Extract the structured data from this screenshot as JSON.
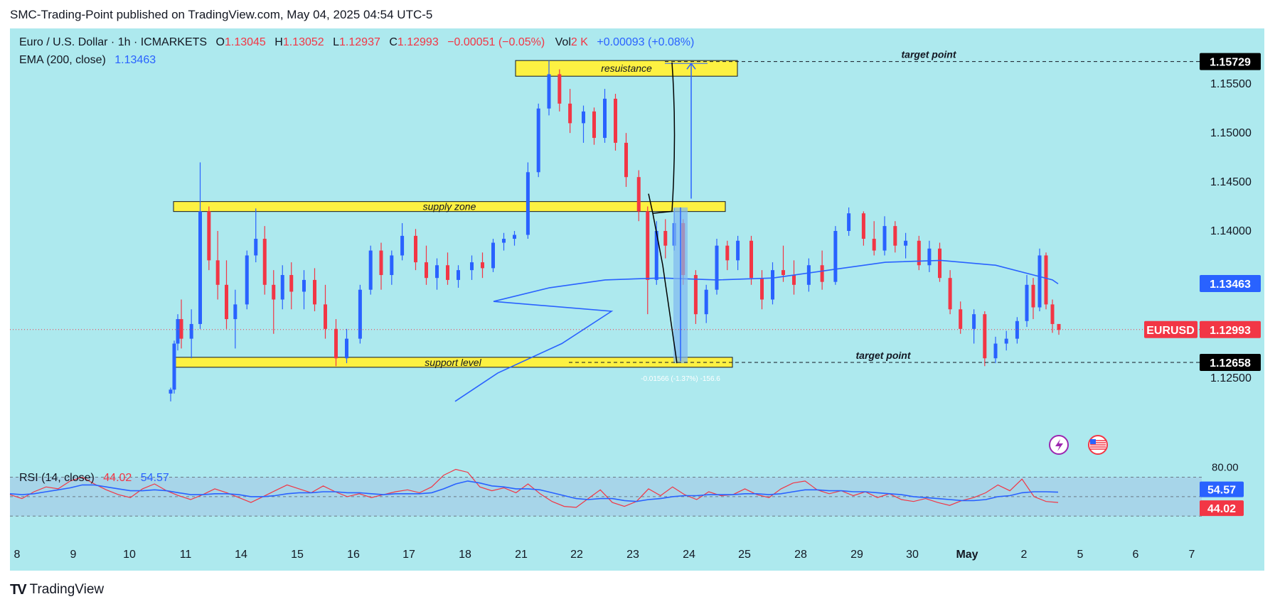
{
  "header": {
    "publisher_line": "SMC-Trading-Point published on TradingView.com, May 04, 2025 04:54 UTC-5"
  },
  "legend": {
    "symbol": "Euro / U.S. Dollar · 1h · ICMARKETS",
    "open_label": "O",
    "open": "1.13045",
    "high_label": "H",
    "high": "1.13052",
    "low_label": "L",
    "low": "1.12937",
    "close_label": "C",
    "close": "1.12993",
    "change": "−0.00051 (−0.05%)",
    "vol_label": "Vol",
    "vol": "2 K",
    "measure_top": "+0.00093 (+0.08%)",
    "ema_label": "EMA (200, close)",
    "ema_value": "1.13463",
    "rsi_label": "RSI (14, close)",
    "rsi_value": "44.02",
    "rsi_ma_value": "54.57"
  },
  "footer": {
    "logo_mark": "TV",
    "brand": "TradingView"
  },
  "colors": {
    "background": "#ade9ee",
    "up_candle": "#2962ff",
    "down_candle": "#f23645",
    "ema": "#2962ff",
    "zone": "#fdf142",
    "rsi": "#f23645",
    "rsi_ma": "#2962ff",
    "rsi_band": "#a3c8e6",
    "price_tag": "#f23645",
    "ema_tag": "#2962ff"
  },
  "chart_data": [
    {
      "type": "candlestick",
      "symbol_tag": "EURUSD",
      "last_price": 1.12993,
      "ema_last": 1.13463,
      "y_ticks": [
        1.155,
        1.15,
        1.145,
        1.14,
        1.135,
        1.13,
        1.125
      ],
      "ylim": [
        1.1215,
        1.1585
      ],
      "x_ticks": [
        "8",
        "9",
        "10",
        "11",
        "14",
        "15",
        "16",
        "17",
        "18",
        "21",
        "22",
        "23",
        "24",
        "25",
        "28",
        "29",
        "30",
        "May",
        "2",
        "5",
        "6",
        "7"
      ],
      "zones": [
        {
          "label": "resuistance",
          "x_from": "21",
          "x_to": "24",
          "y_from": 1.1558,
          "y_to": 1.1574
        },
        {
          "label": "supply zone",
          "x_from": "11",
          "x_to": "25",
          "y_from": 1.1423,
          "y_to": 1.143
        },
        {
          "label": "support level",
          "x_from": "11",
          "x_to": "25",
          "y_from": 1.1262,
          "y_to": 1.1271
        }
      ],
      "target_lines": [
        {
          "label": "target point",
          "price": 1.15729
        },
        {
          "label": "target point",
          "price": 1.12658
        }
      ],
      "price_labels": [
        "1.15729",
        "1.13463",
        "1.12993",
        "1.12658"
      ],
      "measure_bottom": "-0.01566 (-1.37%) -156.6",
      "candles": [
        {
          "d": "10",
          "o": 1.1234,
          "h": 1.124,
          "l": 1.1226,
          "c": 1.1238
        },
        {
          "d": "10",
          "o": 1.1238,
          "h": 1.1288,
          "l": 1.1234,
          "c": 1.1285
        },
        {
          "d": "10",
          "o": 1.1285,
          "h": 1.1315,
          "l": 1.1278,
          "c": 1.131
        },
        {
          "d": "10",
          "o": 1.131,
          "h": 1.133,
          "l": 1.128,
          "c": 1.129
        },
        {
          "d": "11",
          "o": 1.129,
          "h": 1.132,
          "l": 1.127,
          "c": 1.1305
        },
        {
          "d": "11",
          "o": 1.1305,
          "h": 1.147,
          "l": 1.13,
          "c": 1.142
        },
        {
          "d": "11",
          "o": 1.142,
          "h": 1.1425,
          "l": 1.136,
          "c": 1.137
        },
        {
          "d": "11",
          "o": 1.137,
          "h": 1.14,
          "l": 1.133,
          "c": 1.1345
        },
        {
          "d": "11",
          "o": 1.1345,
          "h": 1.137,
          "l": 1.13,
          "c": 1.131
        },
        {
          "d": "11",
          "o": 1.131,
          "h": 1.134,
          "l": 1.128,
          "c": 1.1325
        },
        {
          "d": "14",
          "o": 1.1325,
          "h": 1.138,
          "l": 1.132,
          "c": 1.1375
        },
        {
          "d": "14",
          "o": 1.1375,
          "h": 1.1423,
          "l": 1.1368,
          "c": 1.1392
        },
        {
          "d": "14",
          "o": 1.1392,
          "h": 1.1405,
          "l": 1.1335,
          "c": 1.1345
        },
        {
          "d": "14",
          "o": 1.1345,
          "h": 1.136,
          "l": 1.1295,
          "c": 1.133
        },
        {
          "d": "14",
          "o": 1.133,
          "h": 1.1365,
          "l": 1.132,
          "c": 1.1355
        },
        {
          "d": "14",
          "o": 1.1355,
          "h": 1.1368,
          "l": 1.132,
          "c": 1.1338
        },
        {
          "d": "15",
          "o": 1.1338,
          "h": 1.136,
          "l": 1.132,
          "c": 1.135
        },
        {
          "d": "15",
          "o": 1.135,
          "h": 1.1362,
          "l": 1.1318,
          "c": 1.1325
        },
        {
          "d": "15",
          "o": 1.1325,
          "h": 1.1345,
          "l": 1.129,
          "c": 1.13
        },
        {
          "d": "15",
          "o": 1.13,
          "h": 1.131,
          "l": 1.1262,
          "c": 1.127
        },
        {
          "d": "15",
          "o": 1.127,
          "h": 1.13,
          "l": 1.1265,
          "c": 1.129
        },
        {
          "d": "16",
          "o": 1.129,
          "h": 1.1345,
          "l": 1.1285,
          "c": 1.134
        },
        {
          "d": "16",
          "o": 1.134,
          "h": 1.1385,
          "l": 1.1335,
          "c": 1.138
        },
        {
          "d": "16",
          "o": 1.138,
          "h": 1.1388,
          "l": 1.134,
          "c": 1.1355
        },
        {
          "d": "16",
          "o": 1.1355,
          "h": 1.138,
          "l": 1.1345,
          "c": 1.1375
        },
        {
          "d": "16",
          "o": 1.1375,
          "h": 1.1408,
          "l": 1.137,
          "c": 1.1395
        },
        {
          "d": "17",
          "o": 1.1395,
          "h": 1.1402,
          "l": 1.136,
          "c": 1.1368
        },
        {
          "d": "17",
          "o": 1.1368,
          "h": 1.1385,
          "l": 1.1345,
          "c": 1.1352
        },
        {
          "d": "17",
          "o": 1.1352,
          "h": 1.1372,
          "l": 1.134,
          "c": 1.1365
        },
        {
          "d": "17",
          "o": 1.1365,
          "h": 1.1378,
          "l": 1.1345,
          "c": 1.135
        },
        {
          "d": "17",
          "o": 1.135,
          "h": 1.1365,
          "l": 1.1342,
          "c": 1.136
        },
        {
          "d": "18",
          "o": 1.136,
          "h": 1.1375,
          "l": 1.135,
          "c": 1.1368
        },
        {
          "d": "18",
          "o": 1.1368,
          "h": 1.1378,
          "l": 1.1352,
          "c": 1.1362
        },
        {
          "d": "18",
          "o": 1.1362,
          "h": 1.1392,
          "l": 1.1358,
          "c": 1.1388
        },
        {
          "d": "18",
          "o": 1.1388,
          "h": 1.1398,
          "l": 1.138,
          "c": 1.1392
        },
        {
          "d": "18",
          "o": 1.1392,
          "h": 1.14,
          "l": 1.1385,
          "c": 1.1396
        },
        {
          "d": "21",
          "o": 1.1396,
          "h": 1.147,
          "l": 1.1392,
          "c": 1.146
        },
        {
          "d": "21",
          "o": 1.146,
          "h": 1.153,
          "l": 1.1455,
          "c": 1.1525
        },
        {
          "d": "21",
          "o": 1.1525,
          "h": 1.1574,
          "l": 1.1518,
          "c": 1.156
        },
        {
          "d": "21",
          "o": 1.156,
          "h": 1.1565,
          "l": 1.1522,
          "c": 1.153
        },
        {
          "d": "21",
          "o": 1.153,
          "h": 1.1545,
          "l": 1.15,
          "c": 1.151
        },
        {
          "d": "22",
          "o": 1.151,
          "h": 1.1528,
          "l": 1.149,
          "c": 1.1522
        },
        {
          "d": "22",
          "o": 1.1522,
          "h": 1.1526,
          "l": 1.1488,
          "c": 1.1495
        },
        {
          "d": "22",
          "o": 1.1495,
          "h": 1.1545,
          "l": 1.149,
          "c": 1.1535
        },
        {
          "d": "22",
          "o": 1.1535,
          "h": 1.154,
          "l": 1.1482,
          "c": 1.149
        },
        {
          "d": "22",
          "o": 1.149,
          "h": 1.15,
          "l": 1.1445,
          "c": 1.1455
        },
        {
          "d": "23",
          "o": 1.1455,
          "h": 1.1462,
          "l": 1.141,
          "c": 1.142
        },
        {
          "d": "23",
          "o": 1.142,
          "h": 1.1425,
          "l": 1.1315,
          "c": 1.135
        },
        {
          "d": "23",
          "o": 1.135,
          "h": 1.141,
          "l": 1.1345,
          "c": 1.14
        },
        {
          "d": "23",
          "o": 1.14,
          "h": 1.1412,
          "l": 1.1372,
          "c": 1.1385
        },
        {
          "d": "23",
          "o": 1.1385,
          "h": 1.1423,
          "l": 1.138,
          "c": 1.1408
        },
        {
          "d": "23",
          "o": 1.1408,
          "h": 1.1412,
          "l": 1.1345,
          "c": 1.1355
        },
        {
          "d": "24",
          "o": 1.1355,
          "h": 1.136,
          "l": 1.1305,
          "c": 1.1315
        },
        {
          "d": "24",
          "o": 1.1315,
          "h": 1.1345,
          "l": 1.1306,
          "c": 1.134
        },
        {
          "d": "24",
          "o": 1.134,
          "h": 1.1392,
          "l": 1.1335,
          "c": 1.1385
        },
        {
          "d": "24",
          "o": 1.1385,
          "h": 1.139,
          "l": 1.136,
          "c": 1.137
        },
        {
          "d": "24",
          "o": 1.137,
          "h": 1.1395,
          "l": 1.136,
          "c": 1.139
        },
        {
          "d": "25",
          "o": 1.139,
          "h": 1.1395,
          "l": 1.1345,
          "c": 1.1352
        },
        {
          "d": "25",
          "o": 1.1352,
          "h": 1.136,
          "l": 1.132,
          "c": 1.133
        },
        {
          "d": "25",
          "o": 1.133,
          "h": 1.1368,
          "l": 1.1325,
          "c": 1.136
        },
        {
          "d": "25",
          "o": 1.136,
          "h": 1.1385,
          "l": 1.1348,
          "c": 1.1355
        },
        {
          "d": "25",
          "o": 1.1355,
          "h": 1.137,
          "l": 1.1335,
          "c": 1.1345
        },
        {
          "d": "28",
          "o": 1.1345,
          "h": 1.1372,
          "l": 1.1338,
          "c": 1.1365
        },
        {
          "d": "28",
          "o": 1.1365,
          "h": 1.138,
          "l": 1.134,
          "c": 1.1348
        },
        {
          "d": "28",
          "o": 1.1348,
          "h": 1.1405,
          "l": 1.1345,
          "c": 1.14
        },
        {
          "d": "28",
          "o": 1.14,
          "h": 1.1424,
          "l": 1.1395,
          "c": 1.1418
        },
        {
          "d": "29",
          "o": 1.1418,
          "h": 1.142,
          "l": 1.1385,
          "c": 1.1392
        },
        {
          "d": "29",
          "o": 1.1392,
          "h": 1.141,
          "l": 1.1375,
          "c": 1.138
        },
        {
          "d": "29",
          "o": 1.138,
          "h": 1.1415,
          "l": 1.1375,
          "c": 1.1405
        },
        {
          "d": "29",
          "o": 1.1405,
          "h": 1.141,
          "l": 1.1378,
          "c": 1.1385
        },
        {
          "d": "29",
          "o": 1.1385,
          "h": 1.1398,
          "l": 1.1372,
          "c": 1.139
        },
        {
          "d": "30",
          "o": 1.139,
          "h": 1.1395,
          "l": 1.136,
          "c": 1.1365
        },
        {
          "d": "30",
          "o": 1.1365,
          "h": 1.139,
          "l": 1.1358,
          "c": 1.1382
        },
        {
          "d": "30",
          "o": 1.1382,
          "h": 1.1388,
          "l": 1.1348,
          "c": 1.1352
        },
        {
          "d": "30",
          "o": 1.1352,
          "h": 1.136,
          "l": 1.1315,
          "c": 1.132
        },
        {
          "d": "30",
          "o": 1.132,
          "h": 1.1328,
          "l": 1.1295,
          "c": 1.13
        },
        {
          "d": "May",
          "o": 1.13,
          "h": 1.132,
          "l": 1.1285,
          "c": 1.1315
        },
        {
          "d": "May",
          "o": 1.1315,
          "h": 1.1318,
          "l": 1.1262,
          "c": 1.127
        },
        {
          "d": "May",
          "o": 1.127,
          "h": 1.1292,
          "l": 1.1265,
          "c": 1.1285
        },
        {
          "d": "May",
          "o": 1.1285,
          "h": 1.1298,
          "l": 1.1278,
          "c": 1.129
        },
        {
          "d": "May",
          "o": 1.129,
          "h": 1.1312,
          "l": 1.1285,
          "c": 1.1308
        },
        {
          "d": "2",
          "o": 1.1308,
          "h": 1.1355,
          "l": 1.1302,
          "c": 1.1345
        },
        {
          "d": "2",
          "o": 1.1345,
          "h": 1.1352,
          "l": 1.131,
          "c": 1.1322
        },
        {
          "d": "2",
          "o": 1.1322,
          "h": 1.1382,
          "l": 1.1318,
          "c": 1.1375
        },
        {
          "d": "2",
          "o": 1.1375,
          "h": 1.1378,
          "l": 1.132,
          "c": 1.1325
        },
        {
          "d": "2",
          "o": 1.1325,
          "h": 1.133,
          "l": 1.1296,
          "c": 1.1305
        },
        {
          "d": "2",
          "o": 1.1305,
          "h": 1.1305,
          "l": 1.1294,
          "c": 1.1299
        }
      ],
      "ema_series": [
        {
          "d": "14",
          "v": 1.1226
        },
        {
          "d": "15",
          "v": 1.1255
        },
        {
          "d": "16",
          "v": 1.1285
        },
        {
          "d": "17",
          "v": 1.1318
        },
        {
          "d": "18",
          "v": 1.1328
        },
        {
          "d": "21",
          "v": 1.1342
        },
        {
          "d": "22",
          "v": 1.135
        },
        {
          "d": "23",
          "v": 1.1352
        },
        {
          "d": "24",
          "v": 1.135
        },
        {
          "d": "25",
          "v": 1.1352
        },
        {
          "d": "28",
          "v": 1.136
        },
        {
          "d": "29",
          "v": 1.1368
        },
        {
          "d": "30",
          "v": 1.137
        },
        {
          "d": "May",
          "v": 1.1365
        },
        {
          "d": "2",
          "v": 1.135
        },
        {
          "d": "2",
          "v": 1.1346
        }
      ]
    },
    {
      "type": "line",
      "title": "RSI (14, close)",
      "y_ticks": [
        80
      ],
      "y_tick_labels": [
        "80.00"
      ],
      "ylim": [
        20,
        82
      ],
      "band": [
        30,
        70
      ],
      "middle": 50,
      "series": [
        {
          "name": "RSI",
          "values": [
            52,
            48,
            55,
            60,
            58,
            66,
            70,
            63,
            57,
            52,
            49,
            58,
            63,
            56,
            51,
            47,
            52,
            58,
            54,
            49,
            44,
            50,
            56,
            62,
            58,
            54,
            61,
            55,
            50,
            53,
            49,
            52,
            55,
            57,
            54,
            60,
            72,
            78,
            75,
            60,
            56,
            59,
            54,
            63,
            53,
            45,
            40,
            39,
            48,
            57,
            44,
            40,
            45,
            58,
            51,
            60,
            52,
            47,
            55,
            51,
            52,
            58,
            52,
            49,
            58,
            64,
            66,
            57,
            53,
            56,
            51,
            55,
            49,
            53,
            47,
            45,
            48,
            44,
            41,
            46,
            49,
            54,
            62,
            56,
            68,
            50,
            45,
            44
          ]
        },
        {
          "name": "RSI MA",
          "values": [
            53,
            52,
            53,
            55,
            57,
            59,
            62,
            62,
            60,
            58,
            56,
            56,
            57,
            56,
            54,
            52,
            52,
            53,
            53,
            52,
            50,
            50,
            51,
            53,
            54,
            54,
            55,
            55,
            54,
            54,
            53,
            52,
            53,
            53,
            53,
            54,
            58,
            63,
            66,
            64,
            61,
            60,
            58,
            58,
            57,
            54,
            51,
            48,
            47,
            48,
            48,
            46,
            45,
            47,
            48,
            50,
            51,
            51,
            52,
            52,
            52,
            53,
            53,
            52,
            53,
            55,
            57,
            57,
            56,
            56,
            55,
            55,
            54,
            53,
            52,
            50,
            49,
            48,
            47,
            46,
            46,
            47,
            50,
            51,
            54,
            55,
            55,
            54.57
          ]
        }
      ]
    }
  ]
}
